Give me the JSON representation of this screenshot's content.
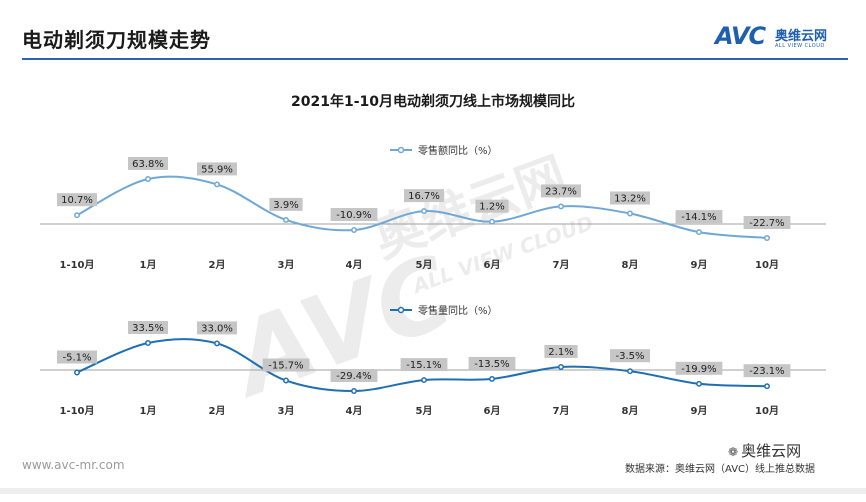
{
  "header": {
    "title": "电动剃须刀规模走势",
    "brand_avc": "AVC",
    "brand_cn": "奥维云网",
    "brand_en": "ALL VIEW CLOUD"
  },
  "footer": {
    "url": "www.avc-mr.com",
    "source": "数据来源：奥维云网（AVC）线上推总数据",
    "social": "奥维云网"
  },
  "watermark": {
    "avc": "AVC",
    "cn": "奥维云网",
    "en": "ALL VIEW CLOUD"
  },
  "colors": {
    "series1": "#6fa8d6",
    "series2": "#1f6fb2",
    "label_bg": "#c6c6c6",
    "header_rule": "#2b63b8"
  },
  "chart_data": {
    "title": "2021年1-10月电动剃须刀线上市场规模同比",
    "type": "line",
    "categories": [
      "1-10月",
      "1月",
      "2月",
      "3月",
      "4月",
      "5月",
      "6月",
      "7月",
      "8月",
      "9月",
      "10月"
    ],
    "panels": [
      {
        "legend": "零售额同比（%）",
        "series_name": "零售额同比",
        "values": [
          10.7,
          63.8,
          55.9,
          3.9,
          -10.9,
          16.7,
          1.2,
          23.7,
          13.2,
          -14.1,
          -22.7
        ],
        "labels": [
          "10.7%",
          "63.8%",
          "55.9%",
          "3.9%",
          "-10.9%",
          "16.7%",
          "1.2%",
          "23.7%",
          "13.2%",
          "-14.1%",
          "-22.7%"
        ],
        "color": "#6fa8d6"
      },
      {
        "legend": "零售量同比（%）",
        "series_name": "零售量同比",
        "values": [
          -5.1,
          33.5,
          33.0,
          -15.7,
          -29.4,
          -15.1,
          -13.5,
          2.1,
          -3.5,
          -19.9,
          -23.1
        ],
        "labels": [
          "-5.1%",
          "33.5%",
          "33.0%",
          "-15.7%",
          "-29.4%",
          "-15.1%",
          "-13.5%",
          "2.1%",
          "-3.5%",
          "-19.9%",
          "-23.1%"
        ],
        "color": "#1f6fb2"
      }
    ],
    "grid": false,
    "legend_position": "top-center"
  }
}
